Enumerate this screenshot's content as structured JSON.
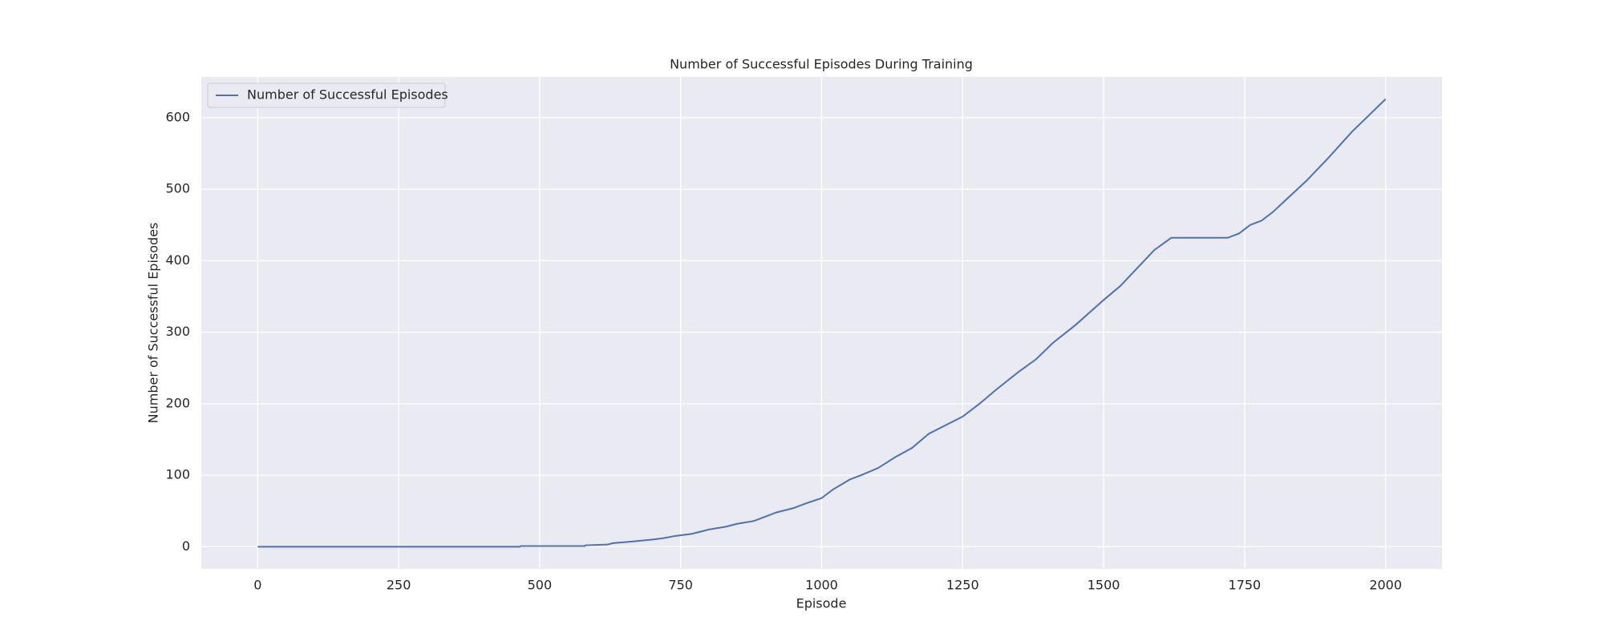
{
  "chart_data": {
    "type": "line",
    "title": "Number of Successful Episodes During Training",
    "x_label": "Episode",
    "y_label": "Number of Successful Episodes",
    "x": [
      0,
      465,
      466,
      580,
      581,
      620,
      630,
      660,
      700,
      720,
      740,
      770,
      800,
      830,
      850,
      880,
      900,
      920,
      950,
      970,
      1000,
      1020,
      1050,
      1070,
      1100,
      1130,
      1160,
      1190,
      1220,
      1250,
      1280,
      1310,
      1350,
      1380,
      1410,
      1450,
      1500,
      1530,
      1560,
      1590,
      1620,
      1720,
      1740,
      1760,
      1780,
      1800,
      1830,
      1860,
      1900,
      1940,
      1970,
      2000
    ],
    "series": [
      {
        "name": "Number of Successful Episodes",
        "color": "#4c72b0",
        "values": [
          0,
          0,
          1,
          1,
          2,
          3,
          5,
          7,
          10,
          12,
          15,
          18,
          24,
          28,
          32,
          36,
          42,
          48,
          54,
          60,
          68,
          80,
          94,
          100,
          110,
          125,
          138,
          158,
          170,
          182,
          200,
          220,
          245,
          262,
          285,
          310,
          345,
          365,
          390,
          415,
          432,
          432,
          438,
          450,
          456,
          468,
          490,
          512,
          545,
          580,
          603,
          626
        ]
      }
    ],
    "xlim": [
      -100,
      2100
    ],
    "ylim": [
      -31,
      657
    ],
    "xticks": [
      0,
      250,
      500,
      750,
      1000,
      1250,
      1500,
      1750,
      2000
    ],
    "yticks": [
      0,
      100,
      200,
      300,
      400,
      500,
      600
    ],
    "grid": true,
    "legend": "upper-left"
  }
}
